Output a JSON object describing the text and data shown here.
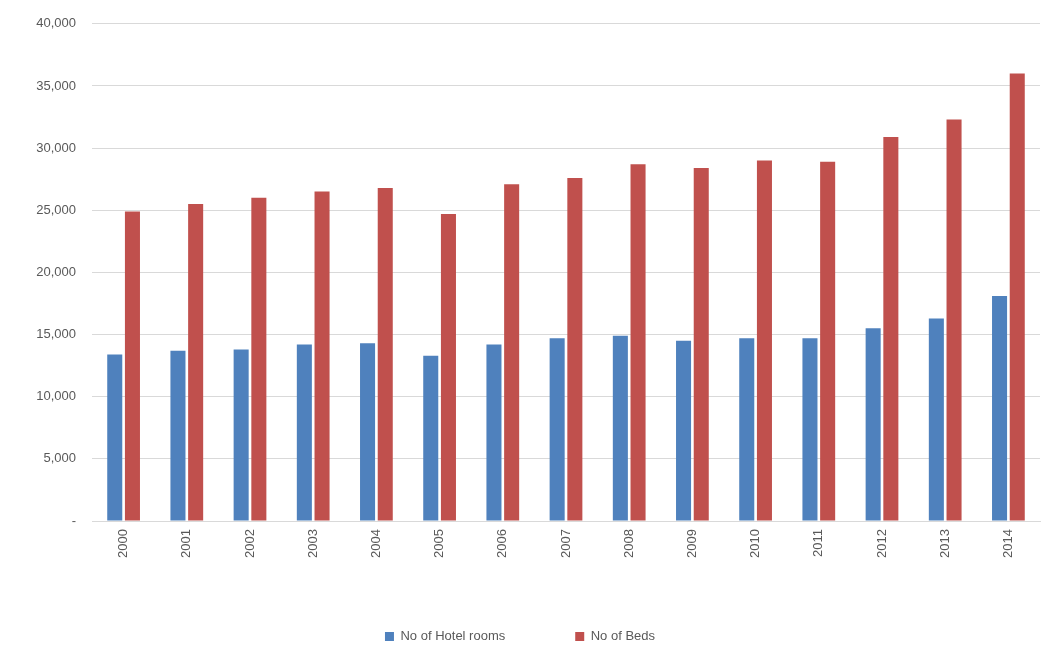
{
  "chart_data": {
    "type": "bar",
    "categories": [
      "2000",
      "2001",
      "2002",
      "2003",
      "2004",
      "2005",
      "2006",
      "2007",
      "2008",
      "2009",
      "2010",
      "2011",
      "2012",
      "2013",
      "2014"
    ],
    "series": [
      {
        "name": "No of Hotel rooms",
        "color": "#4f81bd",
        "values": [
          13400,
          13700,
          13800,
          14200,
          14300,
          13300,
          14200,
          14700,
          14900,
          14500,
          14700,
          14700,
          15500,
          16300,
          18100
        ]
      },
      {
        "name": "No of Beds",
        "color": "#c0504d",
        "values": [
          24900,
          25500,
          26000,
          26500,
          26800,
          24700,
          27100,
          27600,
          28700,
          28400,
          29000,
          28900,
          30900,
          32300,
          36000
        ]
      }
    ],
    "ylim": [
      0,
      40000
    ],
    "yticks": [
      {
        "value": 0,
        "label": "-"
      },
      {
        "value": 5000,
        "label": "5,000"
      },
      {
        "value": 10000,
        "label": "10,000"
      },
      {
        "value": 15000,
        "label": "15,000"
      },
      {
        "value": 20000,
        "label": "20,000"
      },
      {
        "value": 25000,
        "label": "25,000"
      },
      {
        "value": 30000,
        "label": "30,000"
      },
      {
        "value": 35000,
        "label": "35,000"
      },
      {
        "value": 40000,
        "label": "40,000"
      }
    ],
    "grid": "y",
    "legend": "bottom"
  }
}
